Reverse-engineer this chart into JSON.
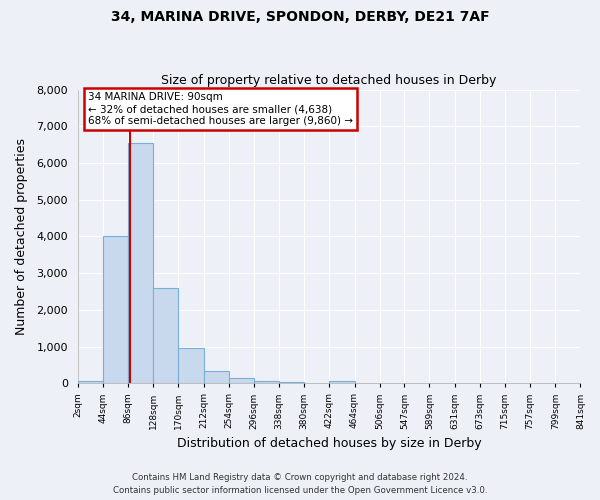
{
  "title": "34, MARINA DRIVE, SPONDON, DERBY, DE21 7AF",
  "subtitle": "Size of property relative to detached houses in Derby",
  "xlabel": "Distribution of detached houses by size in Derby",
  "ylabel": "Number of detached properties",
  "bin_edges": [
    2,
    44,
    86,
    128,
    170,
    212,
    254,
    296,
    338,
    380,
    422,
    464,
    506,
    547,
    589,
    631,
    673,
    715,
    757,
    799,
    841
  ],
  "bar_heights": [
    75,
    4000,
    6550,
    2600,
    950,
    325,
    130,
    75,
    40,
    0,
    75,
    0,
    0,
    0,
    0,
    0,
    0,
    0,
    0,
    0
  ],
  "bar_color": "#c8d9ee",
  "bar_edge_color": "#7aafd4",
  "property_line_x": 90,
  "property_line_color": "#cc0000",
  "ylim": [
    0,
    8000
  ],
  "yticks": [
    0,
    1000,
    2000,
    3000,
    4000,
    5000,
    6000,
    7000,
    8000
  ],
  "annotation_title": "34 MARINA DRIVE: 90sqm",
  "annotation_line1": "← 32% of detached houses are smaller (4,638)",
  "annotation_line2": "68% of semi-detached houses are larger (9,860) →",
  "annotation_box_edge_color": "#cc0000",
  "footer_line1": "Contains HM Land Registry data © Crown copyright and database right 2024.",
  "footer_line2": "Contains public sector information licensed under the Open Government Licence v3.0.",
  "background_color": "#eef0f8",
  "grid_color": "#ffffff",
  "tick_labels": [
    "2sqm",
    "44sqm",
    "86sqm",
    "128sqm",
    "170sqm",
    "212sqm",
    "254sqm",
    "296sqm",
    "338sqm",
    "380sqm",
    "422sqm",
    "464sqm",
    "506sqm",
    "547sqm",
    "589sqm",
    "631sqm",
    "673sqm",
    "715sqm",
    "757sqm",
    "799sqm",
    "841sqm"
  ]
}
